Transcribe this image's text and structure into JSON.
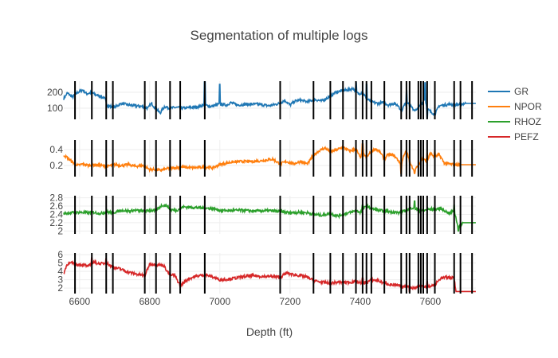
{
  "chart_data": {
    "type": "line",
    "title": "Segmentation of multiple logs",
    "xlabel": "Depth (ft)",
    "x_ticks": [
      6600,
      6800,
      7000,
      7200,
      7400,
      7600
    ],
    "xlim": [
      6555,
      7730
    ],
    "grid": true,
    "legend_placement": "right",
    "boundaries": [
      6587,
      6635,
      6676,
      6695,
      6786,
      6818,
      6858,
      6887,
      6957,
      7172,
      7267,
      7315,
      7351,
      7388,
      7407,
      7418,
      7432,
      7469,
      7517,
      7532,
      7541,
      7566,
      7573,
      7580,
      7591,
      7613,
      7668,
      7686,
      7719
    ],
    "panels": [
      {
        "name": "GR",
        "color": "#1f77b4",
        "ylim": [
          30,
          270
        ],
        "y_ticks": [
          100,
          200
        ],
        "end_depth": 7730,
        "points": [
          [
            6555,
            160
          ],
          [
            6565,
            195
          ],
          [
            6580,
            170
          ],
          [
            6595,
            200
          ],
          [
            6610,
            215
          ],
          [
            6620,
            190
          ],
          [
            6635,
            200
          ],
          [
            6645,
            185
          ],
          [
            6660,
            175
          ],
          [
            6672,
            160
          ],
          [
            6680,
            115
          ],
          [
            6700,
            105
          ],
          [
            6720,
            130
          ],
          [
            6740,
            120
          ],
          [
            6760,
            115
          ],
          [
            6780,
            110
          ],
          [
            6795,
            100
          ],
          [
            6805,
            130
          ],
          [
            6818,
            95
          ],
          [
            6830,
            70
          ],
          [
            6842,
            110
          ],
          [
            6858,
            100
          ],
          [
            6875,
            105
          ],
          [
            6895,
            100
          ],
          [
            6920,
            105
          ],
          [
            6940,
            110
          ],
          [
            6957,
            120
          ],
          [
            6975,
            110
          ],
          [
            6990,
            120
          ],
          [
            7000,
            125
          ],
          [
            7020,
            120
          ],
          [
            7030,
            135
          ],
          [
            7050,
            120
          ],
          [
            7080,
            125
          ],
          [
            7110,
            125
          ],
          [
            7140,
            115
          ],
          [
            7170,
            130
          ],
          [
            7185,
            150
          ],
          [
            7200,
            120
          ],
          [
            7215,
            145
          ],
          [
            7230,
            150
          ],
          [
            7250,
            140
          ],
          [
            7270,
            155
          ],
          [
            7290,
            145
          ],
          [
            7315,
            175
          ],
          [
            7330,
            200
          ],
          [
            7351,
            210
          ],
          [
            7365,
            215
          ],
          [
            7380,
            225
          ],
          [
            7395,
            190
          ],
          [
            7407,
            200
          ],
          [
            7418,
            160
          ],
          [
            7432,
            140
          ],
          [
            7450,
            130
          ],
          [
            7469,
            135
          ],
          [
            7480,
            120
          ],
          [
            7495,
            130
          ],
          [
            7510,
            115
          ],
          [
            7517,
            80
          ],
          [
            7525,
            115
          ],
          [
            7532,
            150
          ],
          [
            7541,
            120
          ],
          [
            7550,
            95
          ],
          [
            7560,
            85
          ],
          [
            7573,
            120
          ],
          [
            7585,
            160
          ],
          [
            7591,
            95
          ],
          [
            7600,
            80
          ],
          [
            7613,
            60
          ],
          [
            7625,
            115
          ],
          [
            7640,
            120
          ],
          [
            7655,
            125
          ],
          [
            7668,
            120
          ],
          [
            7686,
            125
          ],
          [
            7700,
            130
          ],
          [
            7730,
            130
          ]
        ],
        "spikes": [
          [
            6957,
            265
          ],
          [
            7000,
            250
          ],
          [
            7388,
            260
          ],
          [
            7418,
            250
          ],
          [
            7532,
            210
          ],
          [
            7585,
            260
          ],
          [
            7591,
            40
          ]
        ]
      },
      {
        "name": "NPOR",
        "color": "#ff7f0e",
        "ylim": [
          0.06,
          0.52
        ],
        "y_ticks": [
          0.2,
          0.4
        ],
        "end_depth": 7730,
        "points": [
          [
            6555,
            0.33
          ],
          [
            6565,
            0.3
          ],
          [
            6580,
            0.24
          ],
          [
            6595,
            0.2
          ],
          [
            6610,
            0.22
          ],
          [
            6625,
            0.2
          ],
          [
            6640,
            0.21
          ],
          [
            6660,
            0.2
          ],
          [
            6680,
            0.19
          ],
          [
            6700,
            0.21
          ],
          [
            6720,
            0.2
          ],
          [
            6740,
            0.21
          ],
          [
            6760,
            0.19
          ],
          [
            6780,
            0.2
          ],
          [
            6800,
            0.15
          ],
          [
            6815,
            0.15
          ],
          [
            6830,
            0.14
          ],
          [
            6850,
            0.16
          ],
          [
            6870,
            0.17
          ],
          [
            6890,
            0.18
          ],
          [
            6920,
            0.17
          ],
          [
            6957,
            0.18
          ],
          [
            6980,
            0.17
          ],
          [
            7000,
            0.21
          ],
          [
            7030,
            0.24
          ],
          [
            7060,
            0.25
          ],
          [
            7090,
            0.25
          ],
          [
            7120,
            0.26
          ],
          [
            7150,
            0.28
          ],
          [
            7172,
            0.22
          ],
          [
            7190,
            0.25
          ],
          [
            7210,
            0.22
          ],
          [
            7230,
            0.25
          ],
          [
            7250,
            0.22
          ],
          [
            7267,
            0.33
          ],
          [
            7285,
            0.39
          ],
          [
            7300,
            0.42
          ],
          [
            7315,
            0.37
          ],
          [
            7335,
            0.4
          ],
          [
            7351,
            0.43
          ],
          [
            7370,
            0.38
          ],
          [
            7388,
            0.41
          ],
          [
            7400,
            0.3
          ],
          [
            7407,
            0.36
          ],
          [
            7418,
            0.3
          ],
          [
            7432,
            0.38
          ],
          [
            7445,
            0.41
          ],
          [
            7458,
            0.36
          ],
          [
            7469,
            0.28
          ],
          [
            7480,
            0.34
          ],
          [
            7495,
            0.33
          ],
          [
            7510,
            0.26
          ],
          [
            7517,
            0.2
          ],
          [
            7525,
            0.34
          ],
          [
            7532,
            0.38
          ],
          [
            7545,
            0.2
          ],
          [
            7555,
            0.14
          ],
          [
            7566,
            0.2
          ],
          [
            7580,
            0.3
          ],
          [
            7591,
            0.24
          ],
          [
            7600,
            0.36
          ],
          [
            7613,
            0.3
          ],
          [
            7625,
            0.34
          ],
          [
            7640,
            0.23
          ],
          [
            7655,
            0.22
          ],
          [
            7668,
            0.21
          ],
          [
            7686,
            0.21
          ],
          [
            7730,
            0.21
          ]
        ],
        "spikes": [
          [
            7407,
            0.47
          ],
          [
            7517,
            0.1
          ],
          [
            7555,
            0.1
          ],
          [
            7591,
            0.35
          ],
          [
            7613,
            0.38
          ]
        ]
      },
      {
        "name": "RHOZ",
        "color": "#2ca02c",
        "ylim": [
          1.93,
          2.85
        ],
        "y_ticks": [
          2,
          2.2,
          2.4,
          2.6,
          2.8
        ],
        "end_depth": 7730,
        "points": [
          [
            6555,
            2.42
          ],
          [
            6570,
            2.44
          ],
          [
            6587,
            2.44
          ],
          [
            6600,
            2.45
          ],
          [
            6620,
            2.44
          ],
          [
            6640,
            2.45
          ],
          [
            6660,
            2.42
          ],
          [
            6676,
            2.46
          ],
          [
            6695,
            2.44
          ],
          [
            6720,
            2.5
          ],
          [
            6740,
            2.48
          ],
          [
            6760,
            2.5
          ],
          [
            6786,
            2.47
          ],
          [
            6800,
            2.5
          ],
          [
            6818,
            2.49
          ],
          [
            6835,
            2.62
          ],
          [
            6850,
            2.61
          ],
          [
            6858,
            2.52
          ],
          [
            6875,
            2.49
          ],
          [
            6895,
            2.58
          ],
          [
            6920,
            2.57
          ],
          [
            6957,
            2.55
          ],
          [
            6980,
            2.54
          ],
          [
            7000,
            2.5
          ],
          [
            7030,
            2.49
          ],
          [
            7060,
            2.5
          ],
          [
            7100,
            2.48
          ],
          [
            7140,
            2.49
          ],
          [
            7172,
            2.47
          ],
          [
            7200,
            2.44
          ],
          [
            7230,
            2.45
          ],
          [
            7250,
            2.44
          ],
          [
            7267,
            2.4
          ],
          [
            7290,
            2.38
          ],
          [
            7315,
            2.42
          ],
          [
            7335,
            2.36
          ],
          [
            7351,
            2.4
          ],
          [
            7370,
            2.44
          ],
          [
            7388,
            2.49
          ],
          [
            7400,
            2.45
          ],
          [
            7407,
            2.52
          ],
          [
            7418,
            2.6
          ],
          [
            7432,
            2.54
          ],
          [
            7450,
            2.5
          ],
          [
            7469,
            2.48
          ],
          [
            7490,
            2.46
          ],
          [
            7510,
            2.44
          ],
          [
            7532,
            2.49
          ],
          [
            7545,
            2.56
          ],
          [
            7555,
            2.55
          ],
          [
            7566,
            2.5
          ],
          [
            7580,
            2.48
          ],
          [
            7591,
            2.52
          ],
          [
            7613,
            2.53
          ],
          [
            7630,
            2.54
          ],
          [
            7645,
            2.47
          ],
          [
            7655,
            2.42
          ],
          [
            7668,
            2.5
          ],
          [
            7680,
            2.07
          ],
          [
            7693,
            2.2
          ],
          [
            7730,
            2.2
          ]
        ],
        "spikes": [
          [
            7407,
            2.62
          ],
          [
            7555,
            2.72
          ],
          [
            7668,
            2.62
          ],
          [
            7680,
            2.0
          ]
        ]
      },
      {
        "name": "PEFZ",
        "color": "#d62728",
        "ylim": [
          1.35,
          6.2
        ],
        "y_ticks": [
          2,
          3,
          4,
          5,
          6
        ],
        "end_depth": 7730,
        "points": [
          [
            6555,
            3.8
          ],
          [
            6565,
            4.9
          ],
          [
            6580,
            5.0
          ],
          [
            6595,
            4.8
          ],
          [
            6610,
            4.8
          ],
          [
            6625,
            4.6
          ],
          [
            6640,
            5.1
          ],
          [
            6660,
            4.9
          ],
          [
            6676,
            5.0
          ],
          [
            6695,
            4.5
          ],
          [
            6715,
            4.3
          ],
          [
            6740,
            3.9
          ],
          [
            6760,
            3.7
          ],
          [
            6786,
            3.5
          ],
          [
            6800,
            4.9
          ],
          [
            6818,
            4.8
          ],
          [
            6840,
            4.7
          ],
          [
            6858,
            3.5
          ],
          [
            6870,
            3.6
          ],
          [
            6887,
            2.3
          ],
          [
            6910,
            3.1
          ],
          [
            6930,
            3.4
          ],
          [
            6957,
            3.6
          ],
          [
            6975,
            3.4
          ],
          [
            7000,
            3.0
          ],
          [
            7030,
            3.1
          ],
          [
            7060,
            3.3
          ],
          [
            7090,
            3.5
          ],
          [
            7120,
            3.4
          ],
          [
            7150,
            3.4
          ],
          [
            7172,
            3.3
          ],
          [
            7190,
            3.8
          ],
          [
            7210,
            3.6
          ],
          [
            7230,
            3.5
          ],
          [
            7250,
            3.3
          ],
          [
            7267,
            2.9
          ],
          [
            7290,
            2.7
          ],
          [
            7315,
            2.6
          ],
          [
            7340,
            2.7
          ],
          [
            7370,
            2.7
          ],
          [
            7388,
            2.8
          ],
          [
            7407,
            2.6
          ],
          [
            7420,
            2.7
          ],
          [
            7432,
            3.0
          ],
          [
            7450,
            2.9
          ],
          [
            7469,
            2.6
          ],
          [
            7490,
            2.4
          ],
          [
            7510,
            2.3
          ],
          [
            7520,
            2.1
          ],
          [
            7532,
            2.3
          ],
          [
            7541,
            2.1
          ],
          [
            7555,
            2.0
          ],
          [
            7566,
            2.2
          ],
          [
            7580,
            2.3
          ],
          [
            7591,
            2.1
          ],
          [
            7613,
            2.4
          ],
          [
            7630,
            3.2
          ],
          [
            7650,
            3.3
          ],
          [
            7668,
            3.2
          ],
          [
            7673,
            1.6
          ],
          [
            7730,
            1.6
          ]
        ],
        "spikes": [
          [
            6635,
            5.6
          ],
          [
            6676,
            5.5
          ],
          [
            7407,
            3.2
          ],
          [
            7541,
            1.6
          ],
          [
            7591,
            2.8
          ]
        ]
      }
    ]
  }
}
